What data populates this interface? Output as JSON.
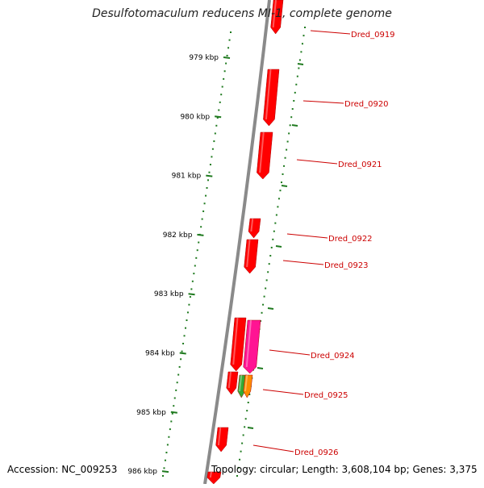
{
  "title": "Desulfotomaculum reducens MI-1, complete genome",
  "footer": {
    "accession": "Accession: NC_009253",
    "topology": "Topology: circular; Length: 3,608,104 bp; Genes: 3,375"
  },
  "colors": {
    "backbone": "#8a8a8a",
    "gene": "#ff0000",
    "gene_highlight": "#ff1493",
    "gene_green": "#33aa33",
    "gene_orange": "#ff8c00",
    "tick": "#1f7a1f",
    "label": "#cc0000"
  },
  "ticks": [
    {
      "label": "979 kbp"
    },
    {
      "label": "980 kbp"
    },
    {
      "label": "981 kbp"
    },
    {
      "label": "982 kbp"
    },
    {
      "label": "983 kbp"
    },
    {
      "label": "984 kbp"
    },
    {
      "label": "985 kbp"
    },
    {
      "label": "986 kbp"
    }
  ],
  "gene_labels": [
    "Dred_0919",
    "Dred_0920",
    "Dred_0921",
    "Dred_0922",
    "Dred_0923",
    "Dred_0924",
    "Dred_0925",
    "Dred_0926"
  ]
}
